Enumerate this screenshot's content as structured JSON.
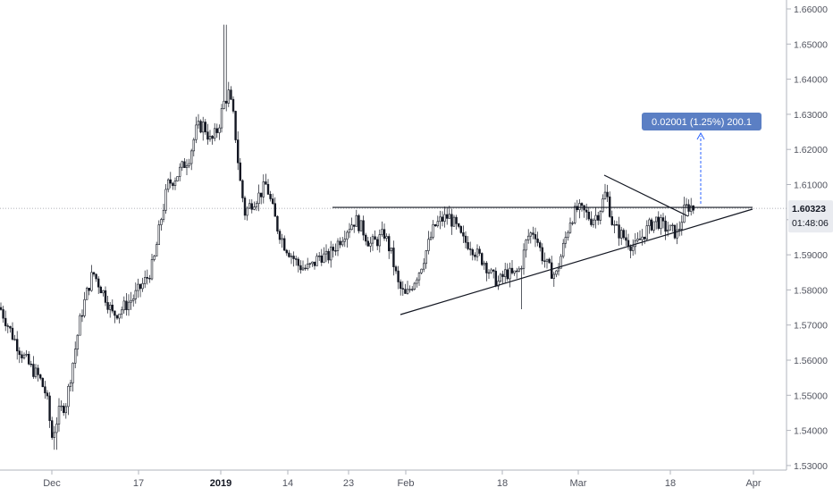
{
  "chart_data": {
    "type": "candlestick",
    "title": "",
    "xlabel": "",
    "ylabel": "",
    "ylim": [
      1.525,
      1.665
    ],
    "y_ticks": [
      "1.66000",
      "1.65000",
      "1.64000",
      "1.63000",
      "1.62000",
      "1.61000",
      "1.60000",
      "1.59000",
      "1.58000",
      "1.57000",
      "1.56000",
      "1.55000",
      "1.54000",
      "1.53000"
    ],
    "x_ticks": [
      {
        "label": "Dec",
        "bold": false
      },
      {
        "label": "17",
        "bold": false
      },
      {
        "label": "2019",
        "bold": true
      },
      {
        "label": "14",
        "bold": false
      },
      {
        "label": "23",
        "bold": false
      },
      {
        "label": "Feb",
        "bold": false
      },
      {
        "label": "18",
        "bold": false
      },
      {
        "label": "Mar",
        "bold": false
      },
      {
        "label": "18",
        "bold": false
      },
      {
        "label": "Apr",
        "bold": false
      }
    ],
    "series_path": [
      [
        0,
        1.575
      ],
      [
        14,
        1.567
      ],
      [
        24,
        1.562
      ],
      [
        34,
        1.558
      ],
      [
        44,
        1.555
      ],
      [
        52,
        1.55
      ],
      [
        58,
        1.538
      ],
      [
        66,
        1.545
      ],
      [
        74,
        1.548
      ],
      [
        82,
        1.56
      ],
      [
        90,
        1.572
      ],
      [
        98,
        1.58
      ],
      [
        104,
        1.585
      ],
      [
        110,
        1.582
      ],
      [
        118,
        1.578
      ],
      [
        126,
        1.573
      ],
      [
        134,
        1.574
      ],
      [
        142,
        1.576
      ],
      [
        150,
        1.578
      ],
      [
        158,
        1.581
      ],
      [
        166,
        1.584
      ],
      [
        172,
        1.588
      ],
      [
        180,
        1.6
      ],
      [
        188,
        1.61
      ],
      [
        196,
        1.612
      ],
      [
        204,
        1.615
      ],
      [
        212,
        1.618
      ],
      [
        220,
        1.626
      ],
      [
        228,
        1.627
      ],
      [
        236,
        1.622
      ],
      [
        244,
        1.626
      ],
      [
        250,
        1.633
      ],
      [
        256,
        1.636
      ],
      [
        262,
        1.628
      ],
      [
        268,
        1.612
      ],
      [
        274,
        1.602
      ],
      [
        282,
        1.605
      ],
      [
        290,
        1.607
      ],
      [
        298,
        1.61
      ],
      [
        304,
        1.604
      ],
      [
        310,
        1.598
      ],
      [
        318,
        1.593
      ],
      [
        326,
        1.59
      ],
      [
        334,
        1.587
      ],
      [
        342,
        1.586
      ],
      [
        350,
        1.587
      ],
      [
        358,
        1.59
      ],
      [
        366,
        1.589
      ],
      [
        374,
        1.592
      ],
      [
        382,
        1.595
      ],
      [
        390,
        1.598
      ],
      [
        398,
        1.6
      ],
      [
        406,
        1.597
      ],
      [
        414,
        1.593
      ],
      [
        422,
        1.594
      ],
      [
        430,
        1.596
      ],
      [
        438,
        1.59
      ],
      [
        446,
        1.581
      ],
      [
        454,
        1.578
      ],
      [
        462,
        1.582
      ],
      [
        470,
        1.586
      ],
      [
        478,
        1.592
      ],
      [
        486,
        1.598
      ],
      [
        494,
        1.6
      ],
      [
        502,
        1.601
      ],
      [
        510,
        1.598
      ],
      [
        518,
        1.594
      ],
      [
        526,
        1.593
      ],
      [
        534,
        1.59
      ],
      [
        542,
        1.588
      ],
      [
        550,
        1.584
      ],
      [
        558,
        1.582
      ],
      [
        566,
        1.585
      ],
      [
        574,
        1.584
      ],
      [
        582,
        1.586
      ],
      [
        590,
        1.595
      ],
      [
        598,
        1.597
      ],
      [
        606,
        1.59
      ],
      [
        614,
        1.586
      ],
      [
        622,
        1.584
      ],
      [
        630,
        1.592
      ],
      [
        638,
        1.6
      ],
      [
        646,
        1.603
      ],
      [
        654,
        1.602
      ],
      [
        662,
        1.6
      ],
      [
        670,
        1.602
      ],
      [
        678,
        1.608
      ],
      [
        686,
        1.598
      ],
      [
        694,
        1.596
      ],
      [
        702,
        1.594
      ],
      [
        710,
        1.592
      ],
      [
        718,
        1.595
      ],
      [
        726,
        1.598
      ],
      [
        734,
        1.6
      ],
      [
        742,
        1.598
      ],
      [
        750,
        1.597
      ],
      [
        758,
        1.596
      ],
      [
        766,
        1.603
      ],
      [
        772,
        1.604
      ],
      [
        776,
        1.6032
      ]
    ],
    "overlays": {
      "resistance_level": 1.6035,
      "current_price": "1.60323",
      "countdown": "01:48:06",
      "measure_label": "0.02001 (1.25%) 200.1"
    }
  }
}
